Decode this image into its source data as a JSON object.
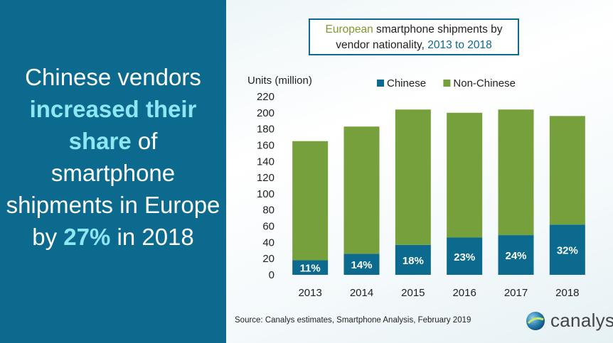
{
  "headline": {
    "part1": "Chinese vendors ",
    "highlight1": "increased their share",
    "part2": " of smartphone shipments in Europe by ",
    "highlight2": "27%",
    "part3": " in 2018"
  },
  "chart_title": {
    "part1": "European",
    "part2": " smartphone shipments by vendor nationality, ",
    "part3": "2013 to 2018"
  },
  "source": "Source:  Canalys estimates, Smartphone  Analysis, February 2019",
  "logo_text": "canalys",
  "colors": {
    "left_panel": "#0b6a8e",
    "highlight": "#8fe6f3",
    "chinese": "#0b6a8e",
    "non_chinese": "#76a03b"
  },
  "chart_data": {
    "type": "bar",
    "stacked": true,
    "categories": [
      "2013",
      "2014",
      "2015",
      "2016",
      "2017",
      "2018"
    ],
    "series": [
      {
        "name": "Chinese",
        "values": [
          18,
          26,
          37,
          46,
          49,
          62
        ],
        "labels": [
          "11%",
          "14%",
          "18%",
          "23%",
          "24%",
          "32%"
        ],
        "color": "#0b6a8e"
      },
      {
        "name": "Non-Chinese",
        "values": [
          147,
          157,
          167,
          154,
          155,
          134
        ],
        "color": "#76a03b"
      }
    ],
    "totals": [
      165,
      183,
      204,
      200,
      204,
      196
    ],
    "ylabel": "Units (million)",
    "ylim": [
      0,
      220
    ],
    "yticks": [
      0,
      20,
      40,
      60,
      80,
      100,
      120,
      140,
      160,
      180,
      200,
      220
    ],
    "legend_position": "top",
    "grid": false
  }
}
